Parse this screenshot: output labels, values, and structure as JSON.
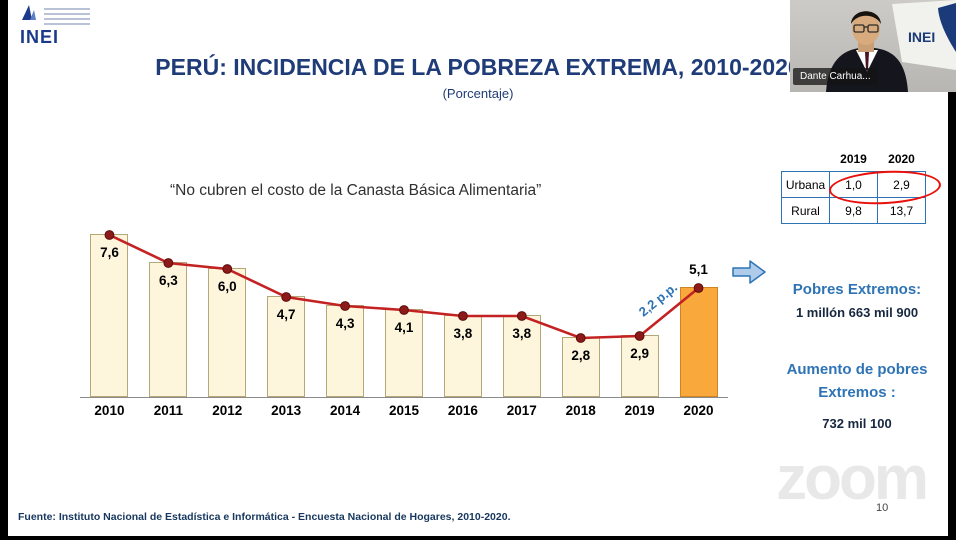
{
  "logo": {
    "text": "INEI"
  },
  "header": {
    "title": "PERÚ: INCIDENCIA DE LA POBREZA EXTREMA, 2010-2020",
    "subtitle": "(Porcentaje)"
  },
  "quote": "“No cubren el costo de la Canasta Básica Alimentaria”",
  "chart_data": {
    "type": "bar",
    "title": "PERÚ: INCIDENCIA DE LA POBREZA EXTREMA, 2010-2020 (Porcentaje)",
    "categories": [
      "2010",
      "2011",
      "2012",
      "2013",
      "2014",
      "2015",
      "2016",
      "2017",
      "2018",
      "2019",
      "2020"
    ],
    "values": [
      7.6,
      6.3,
      6.0,
      4.7,
      4.3,
      4.1,
      3.8,
      3.8,
      2.8,
      2.9,
      5.1
    ],
    "labels": [
      "7,6",
      "6,3",
      "6,0",
      "4,7",
      "4,3",
      "4,1",
      "3,8",
      "3,8",
      "2,8",
      "2,9",
      "5,1"
    ],
    "highlight_index": 10,
    "annotation": "2,2 p.p.",
    "ylim": [
      0,
      8
    ],
    "xlabel": "",
    "ylabel": "",
    "bar_color": "#fdf5dc",
    "bar_border": "#b4a878",
    "highlight_color": "#f9a83c",
    "line_color": "#c42222",
    "marker_color": "#8c1a18"
  },
  "side_table": {
    "col_headers": [
      "2019",
      "2020"
    ],
    "rows": [
      {
        "label": "Urbana",
        "values": [
          "1,0",
          "2,9"
        ],
        "circled": true
      },
      {
        "label": "Rural",
        "values": [
          "9,8",
          "13,7"
        ],
        "circled": false
      }
    ]
  },
  "stats": {
    "pobres_label": "Pobres Extremos:",
    "pobres_value": "1 millón 663 mil 900",
    "aumento_label_line1": "Aumento de pobres",
    "aumento_label_line2": "Extremos :",
    "aumento_value": "732 mil 100"
  },
  "footer": {
    "source": "Fuente: Instituto Nacional de Estadística e Informática - Encuesta Nacional de Hogares, 2010-2020.",
    "page_number": "10"
  },
  "watermark": "zoom",
  "webcam": {
    "name_label": "Dante Carhua..."
  }
}
